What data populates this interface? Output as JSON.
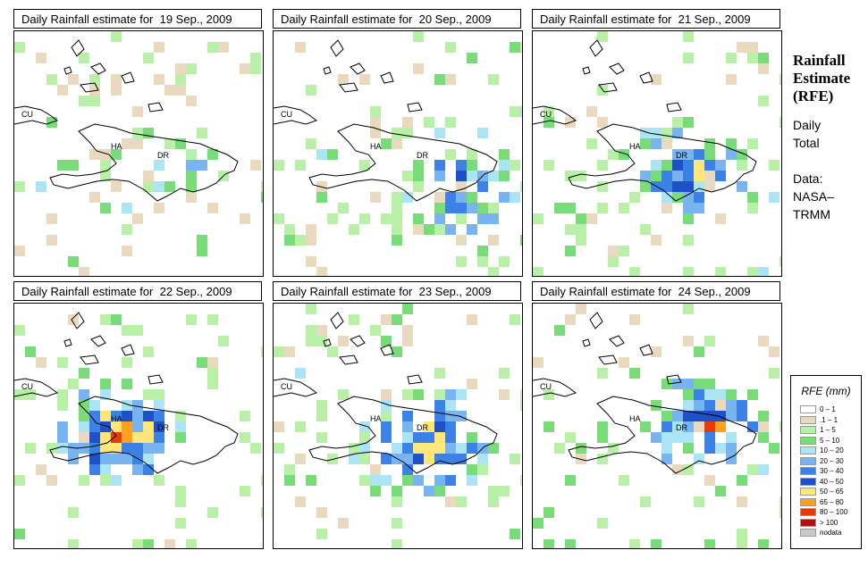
{
  "panels": [
    {
      "title": "Daily Rainfall estimate for  19 Sep., 2009",
      "intensity": 0.15
    },
    {
      "title": "Daily Rainfall estimate for  20 Sep., 2009",
      "intensity": 0.35
    },
    {
      "title": "Daily Rainfall estimate for  21 Sep., 2009",
      "intensity": 0.4
    },
    {
      "title": "Daily Rainfall estimate for  22 Sep., 2009",
      "intensity": 0.55
    },
    {
      "title": "Daily Rainfall estimate for  23 Sep., 2009",
      "intensity": 0.5
    },
    {
      "title": "Daily Rainfall estimate for  24 Sep., 2009",
      "intensity": 0.45
    }
  ],
  "map_labels": {
    "cuba": "CU",
    "haiti": "HA",
    "dominican_republic": "DR"
  },
  "side_panel": {
    "title_lines": [
      "Rainfall",
      "Estimate",
      "(RFE)"
    ],
    "period_lines": [
      "Daily",
      "Total"
    ],
    "source_lines": [
      "Data:",
      "NASA–",
      "TRMM"
    ]
  },
  "legend": {
    "title": "RFE (mm)",
    "items": [
      {
        "label": "0 – 1",
        "color": "#ffffff"
      },
      {
        "label": ".1 – 1",
        "color": "#e8d9bf"
      },
      {
        "label": "1 – 5",
        "color": "#b8f0a8"
      },
      {
        "label": "5 – 10",
        "color": "#78dc78"
      },
      {
        "label": "10 – 20",
        "color": "#aae4f5"
      },
      {
        "label": "20 – 30",
        "color": "#78b4f0"
      },
      {
        "label": "30 – 40",
        "color": "#3c82e6"
      },
      {
        "label": "40 – 50",
        "color": "#1e50c8"
      },
      {
        "label": "50 – 65",
        "color": "#ffe678"
      },
      {
        "label": "65 – 80",
        "color": "#ffa01e"
      },
      {
        "label": "80 – 100",
        "color": "#e63c0a"
      },
      {
        "label": "> 100",
        "color": "#aa1414"
      },
      {
        "label": "nodata",
        "color": "#c8c8c8"
      }
    ]
  }
}
